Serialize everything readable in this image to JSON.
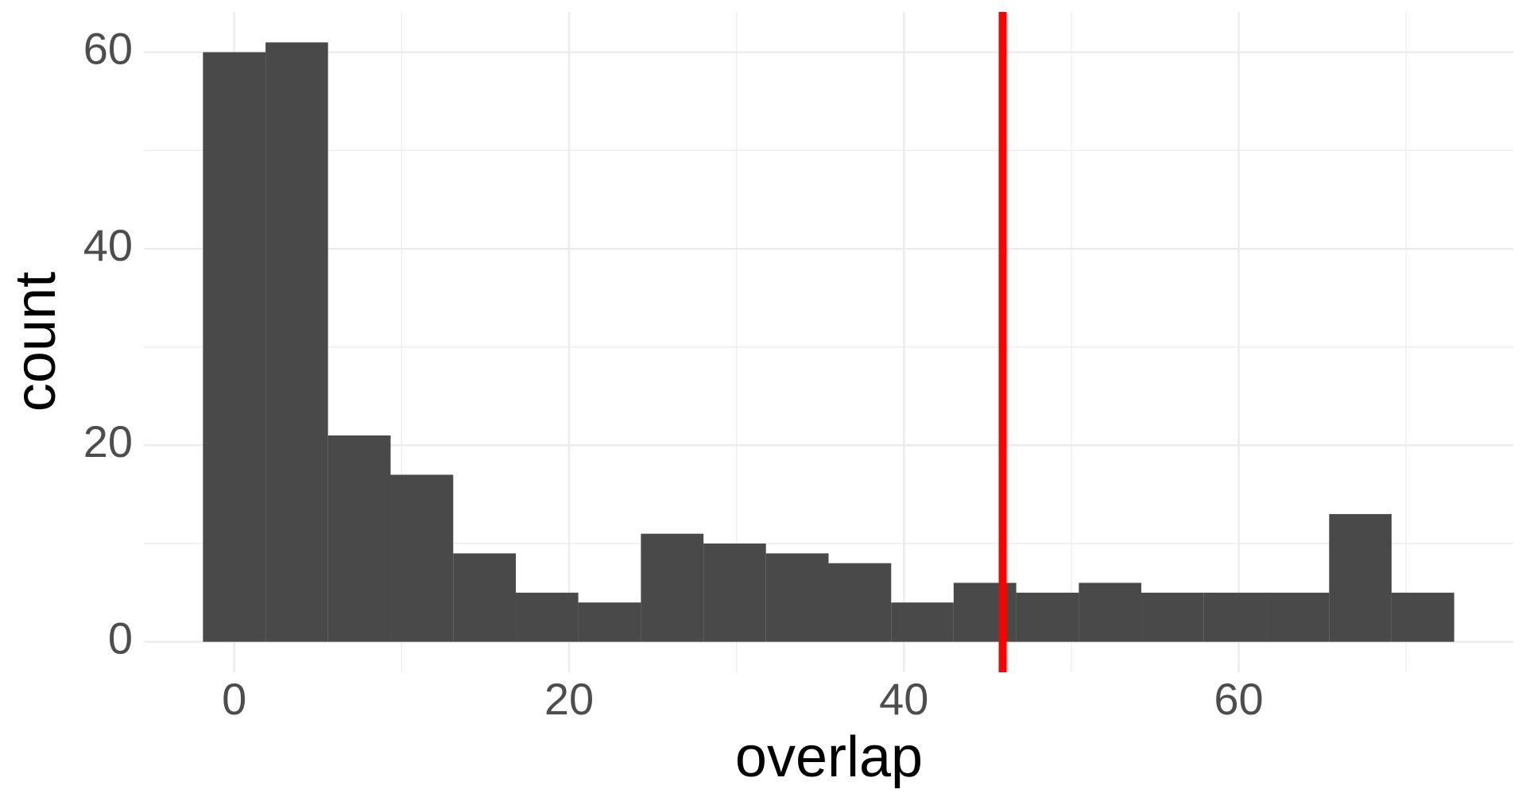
{
  "chart_data": {
    "type": "histogram",
    "x_label": "overlap",
    "y_label": "count",
    "bins": [
      -1.87,
      1.87,
      5.6,
      9.34,
      13.08,
      16.82,
      20.55,
      24.29,
      28.03,
      31.76,
      35.5,
      39.24,
      42.97,
      46.71,
      50.45,
      54.18,
      57.92,
      61.66,
      65.4,
      69.13,
      72.87
    ],
    "counts": [
      60,
      61,
      21,
      17,
      9,
      5,
      4,
      11,
      10,
      9,
      8,
      4,
      6,
      5,
      6,
      5,
      5,
      5,
      13,
      5
    ],
    "color": "#494949",
    "vline": 45.9,
    "vline_color": "#ff0000",
    "xlim": [
      -5.4,
      76.4
    ],
    "xticks": [
      0,
      20,
      40,
      60
    ],
    "minor_xticks": [
      10,
      30,
      50,
      70
    ],
    "ylim": [
      -3.1,
      64.1
    ],
    "yticks": [
      0,
      20,
      40,
      60
    ],
    "minor_yticks": [
      10,
      30,
      50
    ],
    "grid": true
  }
}
